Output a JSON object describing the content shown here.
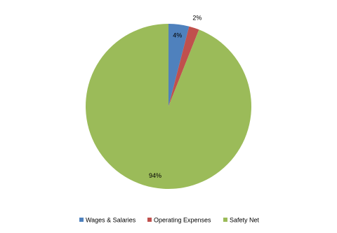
{
  "chart_data": {
    "type": "pie",
    "categories": [
      "Wages & Salaries",
      "Operating Expenses",
      "Safety Net"
    ],
    "values": [
      4,
      2,
      94
    ],
    "value_labels": [
      "4%",
      "2%",
      "94%"
    ],
    "colors": [
      "#4f81bd",
      "#c0504d",
      "#9bbb59"
    ],
    "legend": "bottom"
  }
}
